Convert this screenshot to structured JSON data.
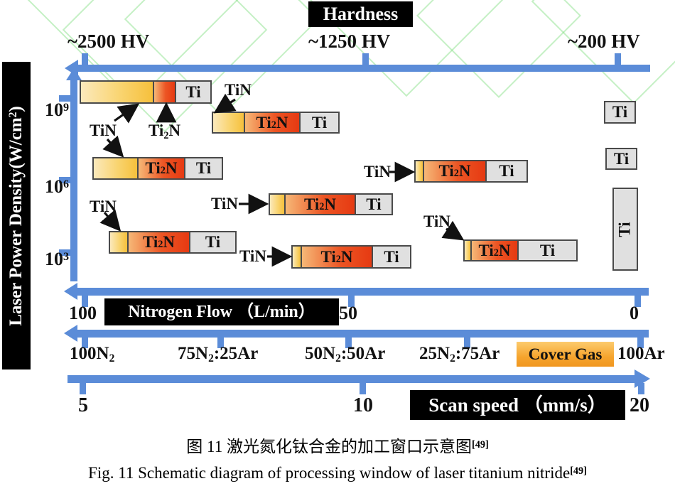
{
  "figure": {
    "hardness_axis": {
      "title": "Hardness",
      "tick_labels": [
        "~2500 HV",
        "~1250 HV",
        "~200 HV"
      ]
    },
    "power_axis": {
      "title": {
        "pre": "Laser Power Density(W/cm",
        "sup": "2",
        "post": ")"
      },
      "tick_labels": [
        {
          "pre": "10",
          "sup": "9"
        },
        {
          "pre": "10",
          "sup": "6"
        },
        {
          "pre": "10",
          "sup": "3"
        }
      ]
    },
    "nitrogen_axis": {
      "title": "Nitrogen Flow （L/min）",
      "tick_labels": [
        "100",
        "50",
        "0"
      ]
    },
    "cover_gas_axis": {
      "legend": "Cover Gas",
      "tick_labels": [
        {
          "pre": "100N",
          "sub": "2"
        },
        {
          "pre": "75N",
          "sub": "2",
          "post": ":25Ar"
        },
        {
          "pre": "50N",
          "sub": "2",
          "post": ":50Ar"
        },
        {
          "pre": "25N",
          "sub": "2",
          "post": ":75Ar"
        },
        {
          "pre": "100Ar"
        }
      ]
    },
    "scan_axis": {
      "title": "Scan speed （mm/s）",
      "tick_labels": [
        "5",
        "10",
        "20"
      ]
    },
    "phase_labels": {
      "tin": "TiN",
      "ti2n": {
        "pre": "Ti",
        "sub": "2",
        "post": "N"
      },
      "ti": "Ti"
    }
  },
  "caption": {
    "zh": {
      "pre": "图 11  激光氮化钛合金的加工窗口示意图",
      "sup": "[49]"
    },
    "en": {
      "pre": "Fig. 11 Schematic diagram of processing window of laser titanium nitride",
      "sup": "[49]"
    }
  },
  "colors": {
    "axis_blue": "#5B8CD8",
    "tin_zone_light": "#FBE9BC",
    "tin_zone_dark": "#F6C03C",
    "ti2n_zone_light": "#F6B877",
    "ti2n_zone_dark": "#E63A12",
    "ti_zone_gray": "#E0E0E0",
    "watermark_green": "#7FDE7F",
    "cover_gas_orange": "#F6A52E"
  }
}
